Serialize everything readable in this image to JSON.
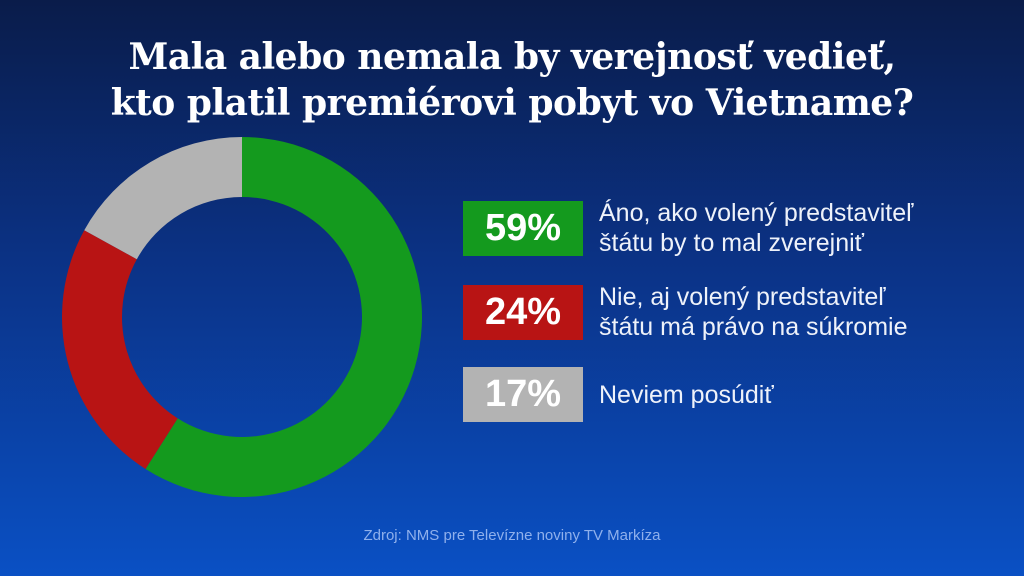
{
  "chart_data": {
    "type": "pie",
    "donut": true,
    "title": "Mala alebo nemala by verejnosť vedieť,\nkto platil premiérovi pobyt vo Vietname?",
    "title_lines": [
      "Mala alebo nemala by verejnosť vedieť,",
      "kto platil premiérovi pobyt vo Vietname?"
    ],
    "slices": [
      {
        "value": 59,
        "label": "59%",
        "text": [
          "Áno, ako volený predstaviteľ",
          "štátu by to mal zverejniť"
        ],
        "color": "#149a1e"
      },
      {
        "value": 24,
        "label": "24%",
        "text": [
          "Nie, aj volený predstaviteľ",
          "štátu má právo na súkromie"
        ],
        "color": "#b81414"
      },
      {
        "value": 17,
        "label": "17%",
        "text": [
          "Neviem posúdiť"
        ],
        "color": "#b3b3b3"
      }
    ],
    "legend_placement": "right",
    "source": "Zdroj: NMS pre Televízne noviny TV Markíza"
  }
}
